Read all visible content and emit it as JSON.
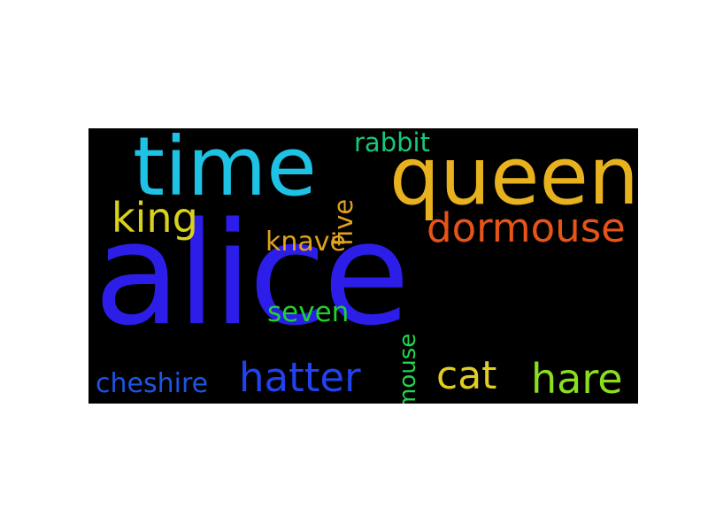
{
  "words": {
    "alice": {
      "text": "alice",
      "color": "#2c1ee8"
    },
    "time": {
      "text": "time",
      "color": "#1ec2e4"
    },
    "queen": {
      "text": "queen",
      "color": "#e8b21f"
    },
    "king": {
      "text": "king",
      "color": "#d8d21c"
    },
    "dormouse": {
      "text": "dormouse",
      "color": "#e65418"
    },
    "rabbit": {
      "text": "rabbit",
      "color": "#18c878"
    },
    "five": {
      "text": "five",
      "color": "#e3a21b"
    },
    "knave": {
      "text": "knave",
      "color": "#e3a21b"
    },
    "seven": {
      "text": "seven",
      "color": "#1ed32e"
    },
    "mouse": {
      "text": "mouse",
      "color": "#1fd64d"
    },
    "cheshire": {
      "text": "cheshire",
      "color": "#1d55e2"
    },
    "hatter": {
      "text": "hatter",
      "color": "#2142ee"
    },
    "cat": {
      "text": "cat",
      "color": "#e2cd23"
    },
    "hare": {
      "text": "hare",
      "color": "#8ade1f"
    }
  },
  "rotated": [
    "five",
    "mouse"
  ]
}
